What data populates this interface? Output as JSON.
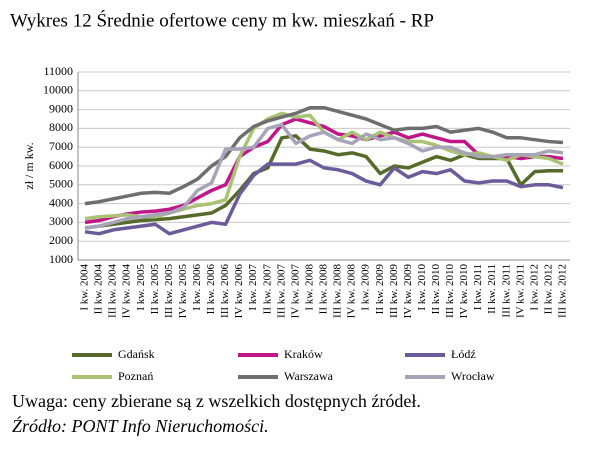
{
  "chart_data": {
    "type": "line",
    "title": "Wykres 12 Średnie ofertowe ceny m kw. mieszkań - RP",
    "y_label": "zł / m kw.",
    "categories": [
      "I kw. 2004",
      "II kw. 2004",
      "III kw. 2004",
      "IV kw. 2004",
      "I kw. 2005",
      "II kw. 2005",
      "III kw. 2005",
      "IV kw. 2005",
      "I kw. 2006",
      "II kw. 2006",
      "III kw. 2006",
      "IV kw. 2006",
      "I kw. 2007",
      "II kw. 2007",
      "III kw. 2007",
      "IV kw. 2007",
      "I kw. 2008",
      "II kw. 2008",
      "III kw. 2008",
      "IV kw. 2008",
      "I kw. 2009",
      "II kw. 2009",
      "III kw. 2009",
      "IV kw. 2009",
      "I kw. 2010",
      "II kw. 2010",
      "III kw. 2010",
      "IV kw. 2010",
      "I kw. 2011",
      "II kw. 2011",
      "III kw. 2011",
      "IV kw. 2011",
      "I kw. 2012",
      "II kw. 2012",
      "III kw. 2012"
    ],
    "series": [
      {
        "name": "Gdańsk",
        "color": "#566a2a",
        "values": [
          2700,
          2800,
          2900,
          3000,
          3100,
          3150,
          3200,
          3300,
          3400,
          3500,
          3900,
          4700,
          5600,
          5900,
          7500,
          7600,
          6900,
          6800,
          6600,
          6700,
          6500,
          5600,
          6000,
          5900,
          6200,
          6500,
          6300,
          6600,
          6400,
          6400,
          6400,
          5000,
          5700,
          5750,
          5750
        ]
      },
      {
        "name": "Kraków",
        "color": "#c0168a",
        "values": [
          3000,
          3100,
          3300,
          3450,
          3550,
          3600,
          3700,
          3900,
          4300,
          4700,
          5000,
          6500,
          7000,
          7300,
          8200,
          8500,
          8300,
          8100,
          7700,
          7600,
          7400,
          7600,
          7800,
          7500,
          7700,
          7500,
          7300,
          7300,
          6600,
          6500,
          6500,
          6400,
          6500,
          6500,
          6400
        ]
      },
      {
        "name": "Łódź",
        "color": "#6b5b9a",
        "values": [
          2500,
          2400,
          2600,
          2700,
          2800,
          2900,
          2400,
          2600,
          2800,
          3000,
          2900,
          4500,
          5500,
          6100,
          6100,
          6100,
          6300,
          5900,
          5800,
          5600,
          5200,
          5000,
          5900,
          5400,
          5700,
          5600,
          5800,
          5200,
          5100,
          5200,
          5200,
          4900,
          5000,
          5000,
          4850
        ]
      },
      {
        "name": "Poznań",
        "color": "#a9c273",
        "values": [
          3200,
          3300,
          3350,
          3400,
          3300,
          3300,
          3500,
          3700,
          3900,
          4000,
          4200,
          6500,
          8000,
          8500,
          8800,
          8600,
          8700,
          7800,
          7400,
          7800,
          7400,
          7800,
          7500,
          7300,
          7300,
          7100,
          6800,
          6600,
          6700,
          6500,
          6300,
          6600,
          6500,
          6400,
          6100
        ]
      },
      {
        "name": "Warszawa",
        "color": "#6e6e6e",
        "values": [
          4000,
          4100,
          4250,
          4400,
          4550,
          4600,
          4550,
          4900,
          5300,
          6000,
          6500,
          7500,
          8100,
          8400,
          8600,
          8800,
          9100,
          9100,
          8900,
          8700,
          8500,
          8200,
          7900,
          8000,
          8000,
          8100,
          7800,
          7900,
          8000,
          7800,
          7500,
          7500,
          7400,
          7300,
          7250
        ]
      },
      {
        "name": "Wrocław",
        "color": "#a7a4ba",
        "values": [
          2700,
          2800,
          3000,
          3200,
          3300,
          3400,
          3500,
          3800,
          4700,
          5100,
          6900,
          6900,
          7000,
          8000,
          8200,
          7200,
          7600,
          7800,
          7400,
          7200,
          7700,
          7400,
          7500,
          7200,
          6800,
          7000,
          7000,
          6700,
          6500,
          6500,
          6600,
          6600,
          6600,
          6800,
          6700
        ]
      }
    ],
    "ylim": [
      1000,
      11000
    ],
    "yticks": [
      1000,
      2000,
      3000,
      4000,
      5000,
      6000,
      7000,
      8000,
      9000,
      10000,
      11000
    ],
    "grid": true
  },
  "notes": {
    "remark": "Uwaga: ceny zbierane są z wszelkich dostępnych źródeł.",
    "source": "Źródło: PONT Info Nieruchomości."
  }
}
